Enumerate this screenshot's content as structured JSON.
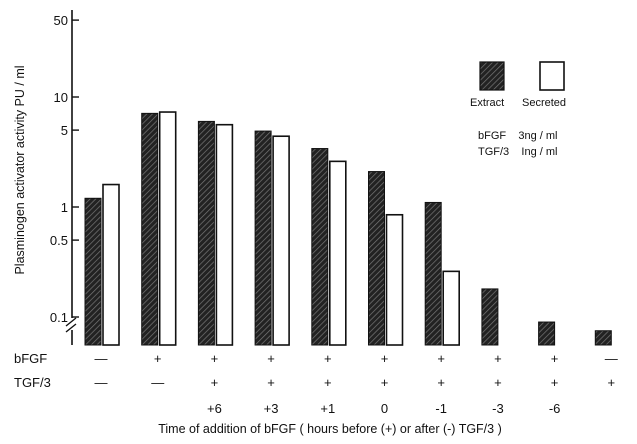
{
  "chart_data": {
    "type": "bar",
    "ylabel": "Plasminogen activator activity   PU / ml",
    "xlabel": "Time of addition of bFGF ( hours before (+) or after (-) TGF/3 )",
    "y_scale": "log",
    "ylim": [
      0.05,
      50
    ],
    "y_ticks": [
      {
        "value": 50,
        "label": "50"
      },
      {
        "value": 10,
        "label": "10"
      },
      {
        "value": 5,
        "label": "5"
      },
      {
        "value": 1,
        "label": "1"
      },
      {
        "value": 0.5,
        "label": "0.5"
      },
      {
        "value": 0.1,
        "label": "0.1"
      }
    ],
    "legend": {
      "position": "top-right",
      "entries": [
        "Extract",
        "Secreted"
      ]
    },
    "series": [
      {
        "name": "Extract",
        "pattern": "hatched",
        "values": [
          1.2,
          7.1,
          6.0,
          4.9,
          3.4,
          2.1,
          1.1,
          0.18,
          0.09,
          0.075
        ]
      },
      {
        "name": "Secreted",
        "pattern": "open",
        "values": [
          1.6,
          7.3,
          5.6,
          4.4,
          2.6,
          0.85,
          0.26,
          0.055,
          null,
          null
        ]
      }
    ],
    "conditions": {
      "row_labels": [
        "bFGF",
        "TGF/3"
      ],
      "bfgf": [
        "—",
        "+",
        "+",
        "+",
        "+",
        "+",
        "+",
        "+",
        "+",
        "—"
      ],
      "tgf": [
        "—",
        "—",
        "+",
        "+",
        "+",
        "+",
        "+",
        "+",
        "+",
        "+"
      ],
      "time": [
        "",
        "",
        "+6",
        "+3",
        "+1",
        "0",
        "-1",
        "-3",
        "-6",
        ""
      ]
    },
    "note": {
      "line1": "bFGF    3ng / ml",
      "line2": "TGF/3    Ing / ml"
    }
  }
}
